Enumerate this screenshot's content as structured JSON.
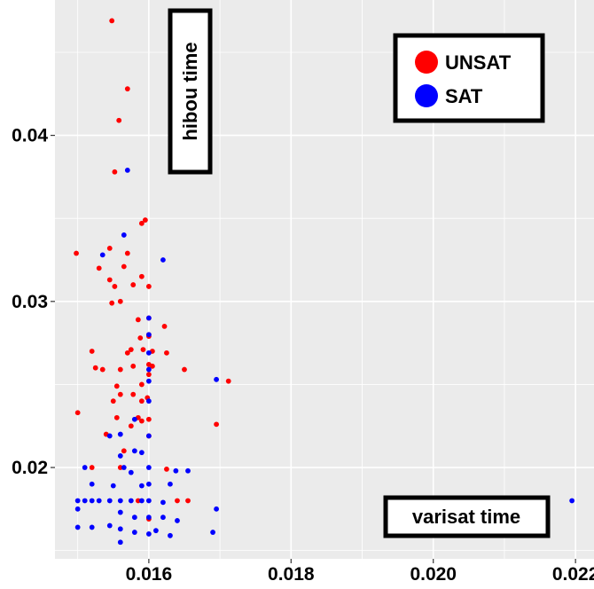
{
  "chart_data": {
    "type": "scatter",
    "title": "",
    "xlabel": "varisat time",
    "ylabel": "hibou time",
    "xlim": [
      0.01468,
      0.02226
    ],
    "ylim": [
      0.0145,
      0.04815
    ],
    "x_ticks": [
      "0.016",
      "0.018",
      "0.020",
      "0.022"
    ],
    "y_ticks": [
      "0.02",
      "0.03",
      "0.04"
    ],
    "x_tick_values": [
      0.016,
      0.018,
      0.02,
      0.022
    ],
    "y_tick_values": [
      0.02,
      0.03,
      0.04
    ],
    "grid": true,
    "legend_position": "top-right",
    "series": [
      {
        "name": "UNSAT",
        "color": "#ff0000",
        "points": [
          [
            0.01548,
            0.0469
          ],
          [
            0.0157,
            0.0428
          ],
          [
            0.01558,
            0.0409
          ],
          [
            0.01552,
            0.0378
          ],
          [
            0.01595,
            0.0349
          ],
          [
            0.0159,
            0.0347
          ],
          [
            0.01498,
            0.0329
          ],
          [
            0.01545,
            0.0332
          ],
          [
            0.0157,
            0.0329
          ],
          [
            0.01565,
            0.0321
          ],
          [
            0.0153,
            0.032
          ],
          [
            0.0159,
            0.0315
          ],
          [
            0.01545,
            0.0313
          ],
          [
            0.01552,
            0.0309
          ],
          [
            0.01578,
            0.031
          ],
          [
            0.016,
            0.0309
          ],
          [
            0.0156,
            0.03
          ],
          [
            0.01548,
            0.0299
          ],
          [
            0.016,
            0.029
          ],
          [
            0.01585,
            0.0289
          ],
          [
            0.01622,
            0.0285
          ],
          [
            0.016,
            0.028
          ],
          [
            0.016,
            0.0279
          ],
          [
            0.01588,
            0.0278
          ],
          [
            0.01575,
            0.0271
          ],
          [
            0.01605,
            0.027
          ],
          [
            0.0152,
            0.027
          ],
          [
            0.01592,
            0.0271
          ],
          [
            0.0157,
            0.0269
          ],
          [
            0.01625,
            0.0269
          ],
          [
            0.016,
            0.0262
          ],
          [
            0.01605,
            0.0261
          ],
          [
            0.01525,
            0.026
          ],
          [
            0.01535,
            0.0259
          ],
          [
            0.01578,
            0.0261
          ],
          [
            0.0156,
            0.0259
          ],
          [
            0.016,
            0.0256
          ],
          [
            0.0165,
            0.0259
          ],
          [
            0.0159,
            0.025
          ],
          [
            0.01555,
            0.0249
          ],
          [
            0.01712,
            0.0252
          ],
          [
            0.0156,
            0.0244
          ],
          [
            0.01578,
            0.0244
          ],
          [
            0.0159,
            0.024
          ],
          [
            0.01598,
            0.0242
          ],
          [
            0.0155,
            0.024
          ],
          [
            0.015,
            0.0233
          ],
          [
            0.01555,
            0.023
          ],
          [
            0.01585,
            0.023
          ],
          [
            0.016,
            0.0229
          ],
          [
            0.0159,
            0.0228
          ],
          [
            0.01695,
            0.0226
          ],
          [
            0.01575,
            0.0225
          ],
          [
            0.0154,
            0.022
          ],
          [
            0.016,
            0.0219
          ],
          [
            0.01565,
            0.021
          ],
          [
            0.0152,
            0.02
          ],
          [
            0.0156,
            0.02
          ],
          [
            0.01625,
            0.0199
          ],
          [
            0.0164,
            0.018
          ],
          [
            0.01655,
            0.018
          ],
          [
            0.01585,
            0.018
          ],
          [
            0.016,
            0.0169
          ]
        ]
      },
      {
        "name": "SAT",
        "color": "#0000ff",
        "points": [
          [
            0.0157,
            0.0379
          ],
          [
            0.01565,
            0.034
          ],
          [
            0.01535,
            0.0328
          ],
          [
            0.0162,
            0.0325
          ],
          [
            0.016,
            0.029
          ],
          [
            0.016,
            0.028
          ],
          [
            0.016,
            0.0269
          ],
          [
            0.016,
            0.0259
          ],
          [
            0.01695,
            0.0253
          ],
          [
            0.016,
            0.0252
          ],
          [
            0.016,
            0.024
          ],
          [
            0.0158,
            0.0229
          ],
          [
            0.0156,
            0.022
          ],
          [
            0.01545,
            0.0219
          ],
          [
            0.016,
            0.0219
          ],
          [
            0.0158,
            0.021
          ],
          [
            0.0159,
            0.0209
          ],
          [
            0.0156,
            0.0207
          ],
          [
            0.01565,
            0.02
          ],
          [
            0.016,
            0.02
          ],
          [
            0.0151,
            0.02
          ],
          [
            0.01575,
            0.0197
          ],
          [
            0.01638,
            0.0198
          ],
          [
            0.01655,
            0.0198
          ],
          [
            0.0152,
            0.019
          ],
          [
            0.0155,
            0.0189
          ],
          [
            0.0159,
            0.0189
          ],
          [
            0.016,
            0.019
          ],
          [
            0.0163,
            0.019
          ],
          [
            0.015,
            0.018
          ],
          [
            0.0151,
            0.018
          ],
          [
            0.0152,
            0.018
          ],
          [
            0.0153,
            0.018
          ],
          [
            0.01545,
            0.018
          ],
          [
            0.0156,
            0.018
          ],
          [
            0.01575,
            0.018
          ],
          [
            0.0159,
            0.018
          ],
          [
            0.016,
            0.018
          ],
          [
            0.0162,
            0.0179
          ],
          [
            0.015,
            0.0175
          ],
          [
            0.0156,
            0.0173
          ],
          [
            0.0158,
            0.017
          ],
          [
            0.016,
            0.017
          ],
          [
            0.0162,
            0.017
          ],
          [
            0.0164,
            0.0168
          ],
          [
            0.015,
            0.0164
          ],
          [
            0.0152,
            0.0164
          ],
          [
            0.01545,
            0.0165
          ],
          [
            0.0156,
            0.0163
          ],
          [
            0.0158,
            0.0161
          ],
          [
            0.016,
            0.016
          ],
          [
            0.0161,
            0.0162
          ],
          [
            0.0163,
            0.0159
          ],
          [
            0.0156,
            0.0155
          ],
          [
            0.0169,
            0.0161
          ],
          [
            0.01695,
            0.0175
          ],
          [
            0.02195,
            0.018
          ]
        ]
      }
    ]
  }
}
